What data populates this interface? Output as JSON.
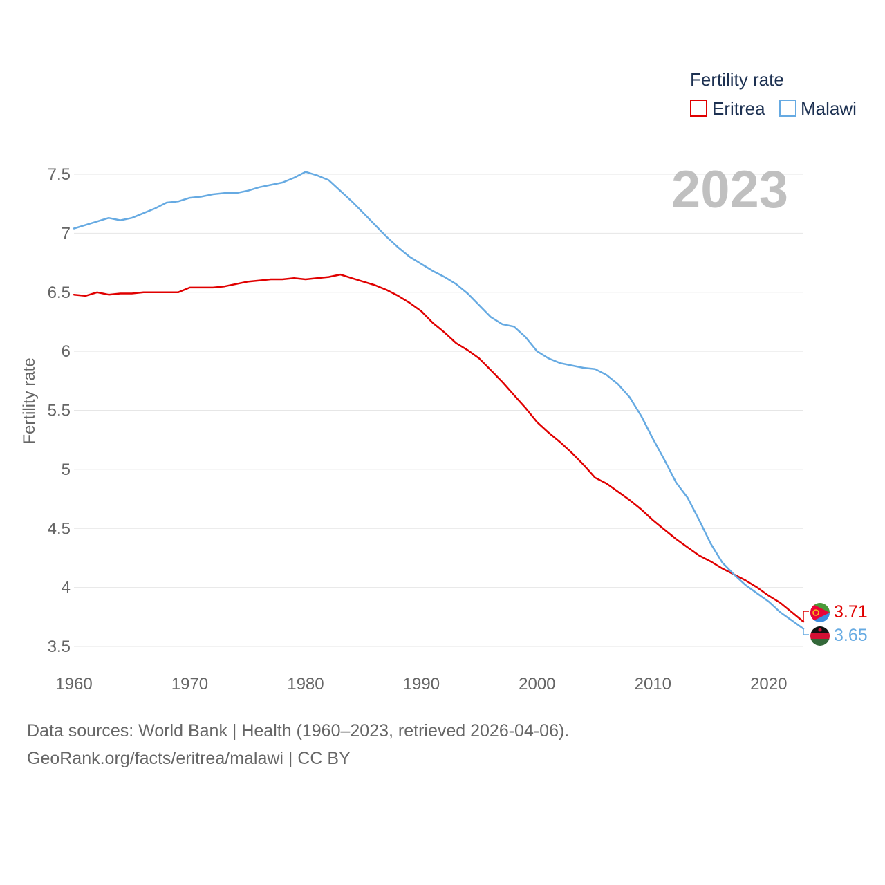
{
  "chart_data": {
    "type": "line",
    "ylabel": "Fertility rate",
    "xlabel": "",
    "xlim": [
      1960,
      2023
    ],
    "ylim": [
      3.5,
      7.5
    ],
    "x_ticks": [
      1960,
      1970,
      1980,
      1990,
      2000,
      2010,
      2020
    ],
    "y_ticks": [
      3.5,
      4,
      4.5,
      5,
      5.5,
      6,
      6.5,
      7,
      7.5
    ],
    "y_tick_labels": [
      "3.5",
      "4",
      "4.5",
      "5",
      "5.5",
      "6",
      "6.5",
      "7",
      "7.5"
    ],
    "x_tick_labels": [
      "1960",
      "1970",
      "1980",
      "1990",
      "2000",
      "2010",
      "2020"
    ],
    "legend_title": "Fertility rate",
    "legend_position": "top-right",
    "year_label": "2023",
    "grid": true,
    "x": [
      1960,
      1961,
      1962,
      1963,
      1964,
      1965,
      1966,
      1967,
      1968,
      1969,
      1970,
      1971,
      1972,
      1973,
      1974,
      1975,
      1976,
      1977,
      1978,
      1979,
      1980,
      1981,
      1982,
      1983,
      1984,
      1985,
      1986,
      1987,
      1988,
      1989,
      1990,
      1991,
      1992,
      1993,
      1994,
      1995,
      1996,
      1997,
      1998,
      1999,
      2000,
      2001,
      2002,
      2003,
      2004,
      2005,
      2006,
      2007,
      2008,
      2009,
      2010,
      2011,
      2012,
      2013,
      2014,
      2015,
      2016,
      2017,
      2018,
      2019,
      2020,
      2021,
      2022,
      2023
    ],
    "series": [
      {
        "name": "Eritrea",
        "color": "#e00000",
        "end_label": "3.71",
        "values": [
          6.48,
          6.47,
          6.5,
          6.48,
          6.49,
          6.49,
          6.5,
          6.5,
          6.5,
          6.5,
          6.54,
          6.54,
          6.54,
          6.55,
          6.57,
          6.59,
          6.6,
          6.61,
          6.61,
          6.62,
          6.61,
          6.62,
          6.63,
          6.65,
          6.62,
          6.59,
          6.56,
          6.52,
          6.47,
          6.41,
          6.34,
          6.24,
          6.16,
          6.07,
          6.01,
          5.94,
          5.84,
          5.74,
          5.63,
          5.52,
          5.4,
          5.31,
          5.23,
          5.14,
          5.04,
          4.93,
          4.88,
          4.81,
          4.74,
          4.66,
          4.57,
          4.49,
          4.41,
          4.34,
          4.27,
          4.22,
          4.16,
          4.11,
          4.06,
          4.0,
          3.93,
          3.87,
          3.79,
          3.71
        ]
      },
      {
        "name": "Malawi",
        "color": "#66aae2",
        "end_label": "3.65",
        "values": [
          7.04,
          7.07,
          7.1,
          7.13,
          7.11,
          7.13,
          7.17,
          7.21,
          7.26,
          7.27,
          7.3,
          7.31,
          7.33,
          7.34,
          7.34,
          7.36,
          7.39,
          7.41,
          7.43,
          7.47,
          7.52,
          7.49,
          7.45,
          7.36,
          7.27,
          7.17,
          7.07,
          6.97,
          6.88,
          6.8,
          6.74,
          6.68,
          6.63,
          6.57,
          6.49,
          6.39,
          6.29,
          6.23,
          6.21,
          6.12,
          6.0,
          5.94,
          5.9,
          5.88,
          5.86,
          5.85,
          5.8,
          5.72,
          5.61,
          5.45,
          5.26,
          5.08,
          4.89,
          4.76,
          4.57,
          4.37,
          4.21,
          4.11,
          4.02,
          3.95,
          3.88,
          3.79,
          3.72,
          3.65
        ]
      }
    ]
  },
  "footer": {
    "line1": "Data sources: World Bank | Health (1960–2023, retrieved 2026-04-06).",
    "line2": "GeoRank.org/facts/eritrea/malawi | CC BY"
  }
}
